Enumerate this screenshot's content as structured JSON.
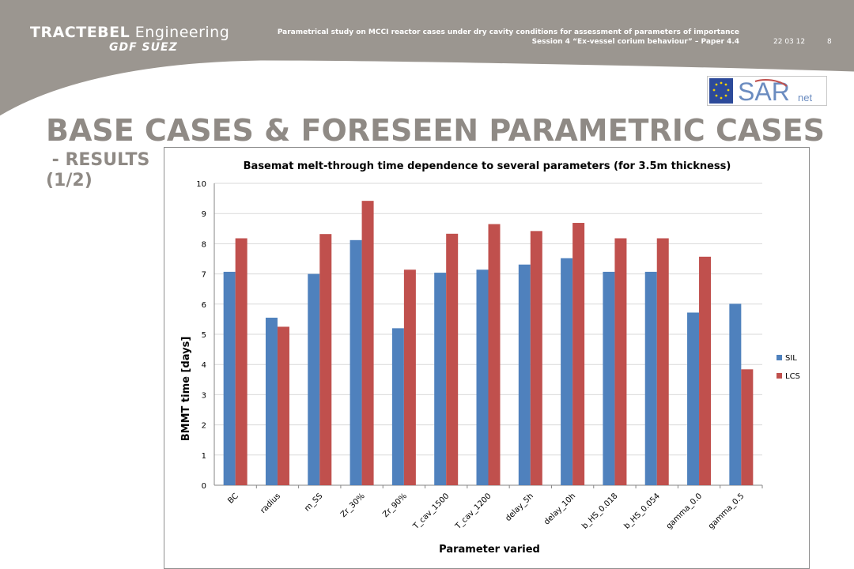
{
  "header": {
    "brand_main": "TRACTEBEL",
    "brand_light": " Engineering",
    "brand_sub": "GDF SUEZ",
    "title_line1": "Parametrical study on MCCI reactor cases under dry cavity conditions for assessment of parameters of importance",
    "title_line2": "Session 4 “Ex-vessel corium behaviour” – Paper 4.4",
    "date": "22 03 12",
    "page": "8"
  },
  "logo": {
    "text_main": "SAR",
    "text_sub": "net"
  },
  "slide": {
    "title_line1": "BASE CASES & FORESEEN PARAMETRIC CASES",
    "title_line2": " - RESULTS",
    "title_line3": "(1/2)"
  },
  "colors": {
    "header_bg": "#9b9690",
    "title": "#8f8a85",
    "sil": "#4f81bd",
    "lcs": "#c0504d"
  },
  "chart_data": {
    "type": "bar",
    "title": "Basemat melt-through time dependence to several parameters (for 3.5m thickness)",
    "xlabel": "Parameter varied",
    "ylabel": "BMMT time [days]",
    "ylim": [
      0,
      10
    ],
    "yticks": [
      "0",
      "1",
      "2",
      "3",
      "4",
      "5",
      "6",
      "7",
      "8",
      "9",
      "10"
    ],
    "grid": true,
    "legend": "right",
    "categories": [
      "BC",
      "radius",
      "m_SS",
      "Zr_30%",
      "Zr_90%",
      "T_cav_1500",
      "T_cav_1200",
      "delay_5h",
      "delay_10h",
      "b_HS_0.018",
      "b_HS_0.054",
      "gamma_0.0",
      "gamma_0.5"
    ],
    "series": [
      {
        "name": "SIL",
        "color": "#4f81bd",
        "values": [
          7.07,
          5.55,
          7.0,
          8.12,
          5.2,
          7.04,
          7.14,
          7.31,
          7.52,
          7.07,
          7.07,
          5.72,
          6.01
        ]
      },
      {
        "name": "LCS",
        "color": "#c0504d",
        "values": [
          8.18,
          5.25,
          8.32,
          9.42,
          7.14,
          8.33,
          8.65,
          8.42,
          8.69,
          8.18,
          8.18,
          7.57,
          3.84
        ]
      }
    ]
  }
}
